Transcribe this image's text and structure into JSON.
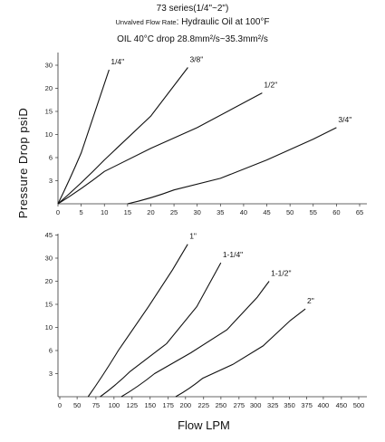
{
  "header": {
    "series": "73 series(1/4\"~2\")",
    "flow_rate_label": "Unvalved Flow Rate",
    "flow_rate_sep": ":",
    "flow_rate_value": "Hydraulic Oil at 100°F",
    "viscosity": "OIL 40°C drop 28.8mm²/s~35.3mm²/s"
  },
  "chart_data": [
    {
      "type": "line",
      "ylabel": "Pressure Drop psiD",
      "xlabel": "",
      "x_ticks": [
        "0",
        "5",
        "10",
        "15",
        "20",
        "25",
        "30",
        "35",
        "40",
        "45",
        "50",
        "55",
        "60",
        "65"
      ],
      "y_ticks": [
        "3",
        "6",
        "10",
        "15",
        "20",
        "30"
      ],
      "y_tick_levels": [
        1,
        2,
        3,
        4,
        5,
        6
      ],
      "xlim": [
        0,
        65
      ],
      "ylim_levels": [
        0,
        6.3
      ],
      "grid": false,
      "legend": "inline labels at curve ends",
      "series": [
        {
          "name": "1/4\"",
          "points": [
            [
              0,
              0
            ],
            [
              5,
              2.2
            ],
            [
              11,
              5.8
            ]
          ]
        },
        {
          "name": "3/8\"",
          "points": [
            [
              0,
              0
            ],
            [
              10,
              1.9
            ],
            [
              20,
              3.8
            ],
            [
              28,
              5.9
            ]
          ]
        },
        {
          "name": "1/2\"",
          "points": [
            [
              0,
              0
            ],
            [
              10,
              1.4
            ],
            [
              20,
              2.4
            ],
            [
              30,
              3.3
            ],
            [
              44,
              4.8
            ]
          ]
        },
        {
          "name": "3/4\"",
          "points": [
            [
              15,
              0
            ],
            [
              25,
              0.6
            ],
            [
              35,
              1.1
            ],
            [
              45,
              1.9
            ],
            [
              55,
              2.8
            ],
            [
              60,
              3.3
            ]
          ]
        }
      ]
    },
    {
      "type": "line",
      "ylabel": "Pressure Drop psiD",
      "xlabel": "Flow LPM",
      "x_ticks": [
        "0",
        "50",
        "75",
        "100",
        "125",
        "150",
        "175",
        "200",
        "225",
        "250",
        "275",
        "300",
        "325",
        "350",
        "375",
        "400",
        "450",
        "500"
      ],
      "y_ticks": [
        "3",
        "6",
        "10",
        "15",
        "20",
        "30",
        "45"
      ],
      "y_tick_levels": [
        1,
        2,
        3,
        4,
        5,
        6,
        7
      ],
      "xlim": [
        0,
        500
      ],
      "ylim_levels": [
        0,
        7
      ],
      "grid": false,
      "legend": "inline labels at curve ends",
      "series": [
        {
          "name": "1\"",
          "points": [
            [
              50,
              0
            ],
            [
              100,
              2.0
            ],
            [
              150,
              3.9
            ],
            [
              190,
              5.5
            ],
            [
              215,
              6.6
            ]
          ]
        },
        {
          "name": "1-1/4\"",
          "points": [
            [
              70,
              0
            ],
            [
              120,
              1.1
            ],
            [
              180,
              2.3
            ],
            [
              230,
              3.9
            ],
            [
              270,
              5.8
            ]
          ]
        },
        {
          "name": "1-1/2\"",
          "points": [
            [
              105,
              0
            ],
            [
              160,
              1.0
            ],
            [
              220,
              1.9
            ],
            [
              280,
              2.9
            ],
            [
              330,
              4.3
            ],
            [
              350,
              5.0
            ]
          ]
        },
        {
          "name": "2\"",
          "points": [
            [
              195,
              0
            ],
            [
              240,
              0.8
            ],
            [
              290,
              1.4
            ],
            [
              340,
              2.2
            ],
            [
              385,
              3.3
            ],
            [
              410,
              3.8
            ]
          ]
        }
      ]
    }
  ]
}
